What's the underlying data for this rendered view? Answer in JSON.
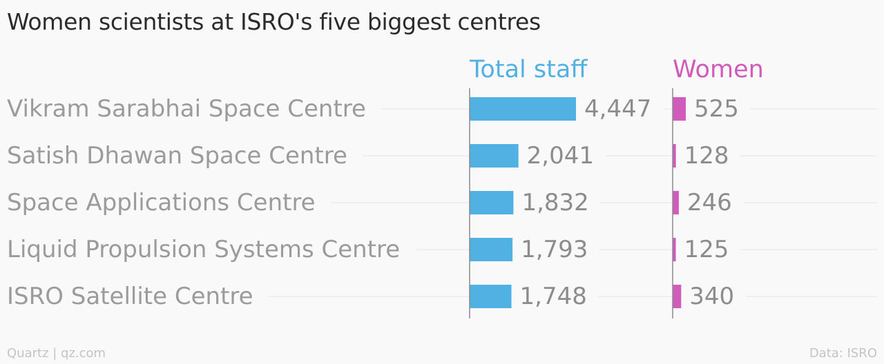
{
  "header": {
    "title": "Women scientists at ISRO's five biggest centres"
  },
  "footer": {
    "source_left": "Quartz | qz.com",
    "source_right": "Data: ISRO"
  },
  "chart_data": {
    "type": "bar",
    "orientation": "horizontal",
    "title": "Women scientists at ISRO's five biggest centres",
    "categories": [
      "Vikram Sarabhai Space Centre",
      "Satish Dhawan Space Centre",
      "Space Applications Centre",
      "Liquid Propulsion Systems Centre",
      "ISRO Satellite Centre"
    ],
    "series": [
      {
        "name": "Total staff",
        "color": "#52b1e3",
        "values": [
          4447,
          2041,
          1832,
          1793,
          1748
        ],
        "value_labels": [
          "4,447",
          "2,041",
          "1,832",
          "1,793",
          "1,748"
        ]
      },
      {
        "name": "Women",
        "color": "#d05bba",
        "values": [
          525,
          128,
          246,
          125,
          340
        ],
        "value_labels": [
          "525",
          "128",
          "246",
          "125",
          "340"
        ]
      }
    ],
    "layout": "small-multiples-side-by-side",
    "grid": true,
    "legend": "panel-headers-top"
  }
}
